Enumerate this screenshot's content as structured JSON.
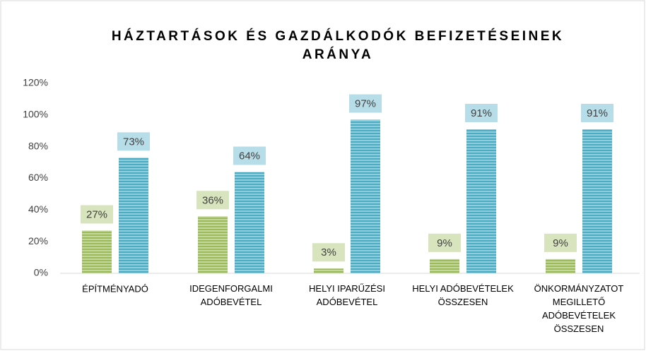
{
  "chart_data": {
    "type": "bar",
    "title": "HÁZTARTÁSOK ÉS GAZDÁLKODÓK BEFIZETÉSEINEK\nARÁNYA",
    "categories": [
      "ÉPÍTMÉNYADÓ",
      "IDEGENFORGALMI\nADÓBEVÉTEL",
      "HELYI IPARŰZÉSI\nADÓBEVÉTEL",
      "HELYI ADÓBEVÉTELEK\nÖSSZESEN",
      "ÖNKORMÁNYZATOT\nMEGILLETŐ\nADÓBEVÉTELEK\nÖSSZESEN"
    ],
    "series": [
      {
        "color": "#9bbb59",
        "label_color": "#d7e4bd",
        "values": [
          27,
          36,
          3,
          9,
          9
        ],
        "value_labels": [
          "27%",
          "36%",
          "3%",
          "9%",
          "9%"
        ]
      },
      {
        "color": "#4bacc6",
        "label_color": "#b7dee8",
        "values": [
          73,
          64,
          97,
          91,
          91
        ],
        "value_labels": [
          "73%",
          "64%",
          "97%",
          "91%",
          "91%"
        ]
      }
    ],
    "ylim": [
      0,
      120
    ],
    "yticks": [
      {
        "value": 0,
        "label": "0%"
      },
      {
        "value": 20,
        "label": "20%"
      },
      {
        "value": 40,
        "label": "40%"
      },
      {
        "value": 60,
        "label": "60%"
      },
      {
        "value": 80,
        "label": "80%"
      },
      {
        "value": 100,
        "label": "100%"
      },
      {
        "value": 120,
        "label": "120%"
      }
    ],
    "grid": false
  }
}
